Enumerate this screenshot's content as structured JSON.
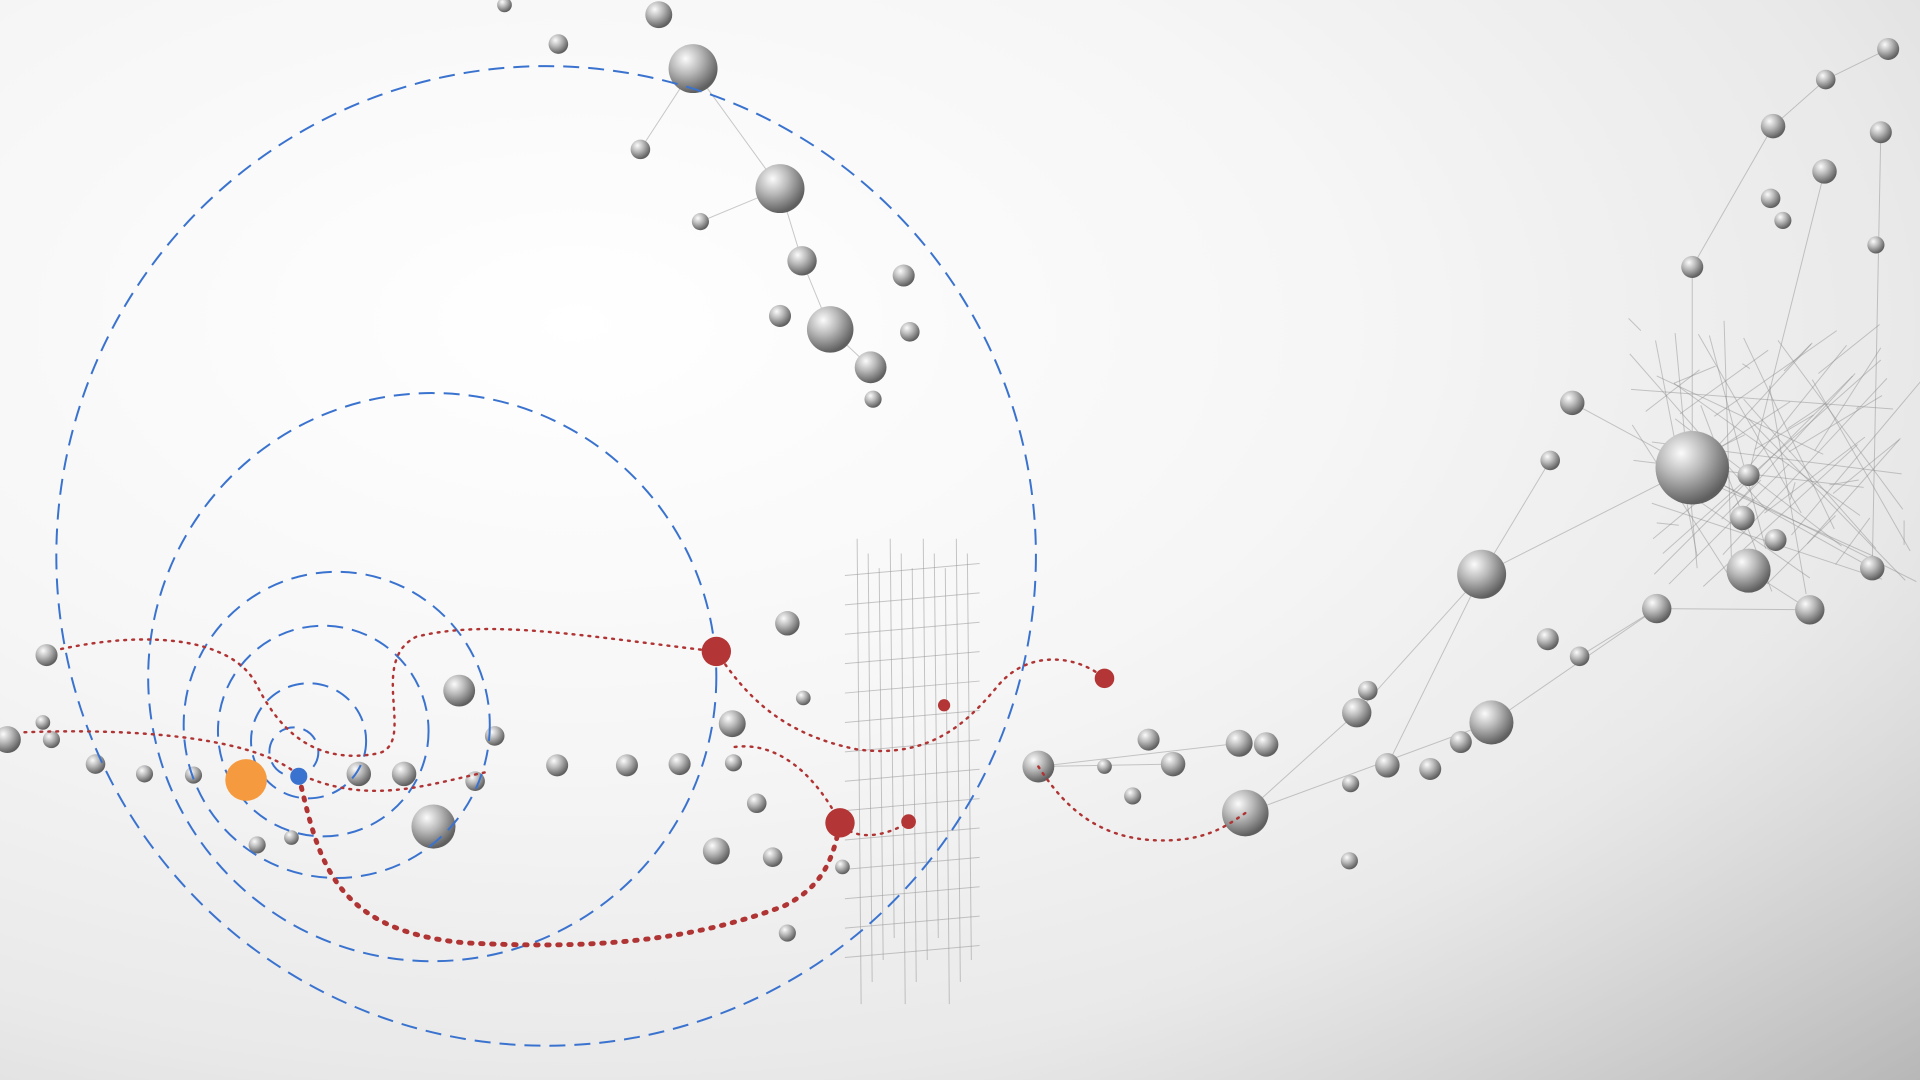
{
  "colors": {
    "orbit": "#3a73cf",
    "path": "#b03434",
    "sun": "#f59a3e",
    "center": "#3a73cf",
    "highlight": "#b33535",
    "sphere_light": "#f2f2f2",
    "sphere_dark": "#6e6e6e"
  },
  "diagram": {
    "orbits": [
      {
        "name": "orbit-outer"
      },
      {
        "name": "orbit-large"
      },
      {
        "name": "orbit-medium"
      },
      {
        "name": "orbit-small"
      },
      {
        "name": "orbit-tiny"
      },
      {
        "name": "orbit-innermost"
      }
    ],
    "paths": [
      {
        "name": "dotted-path-upper"
      },
      {
        "name": "dotted-path-left"
      },
      {
        "name": "dotted-path-lower-heavy"
      },
      {
        "name": "dotted-path-middle"
      },
      {
        "name": "dotted-path-right"
      },
      {
        "name": "dotted-path-far-right"
      }
    ],
    "highlight_nodes": [
      {
        "name": "highlight-node-1"
      },
      {
        "name": "highlight-node-2"
      },
      {
        "name": "highlight-node-3"
      },
      {
        "name": "highlight-node-4"
      },
      {
        "name": "highlight-node-5"
      }
    ],
    "center": {
      "name": "center-node"
    },
    "sun": {
      "name": "sun-node"
    }
  }
}
